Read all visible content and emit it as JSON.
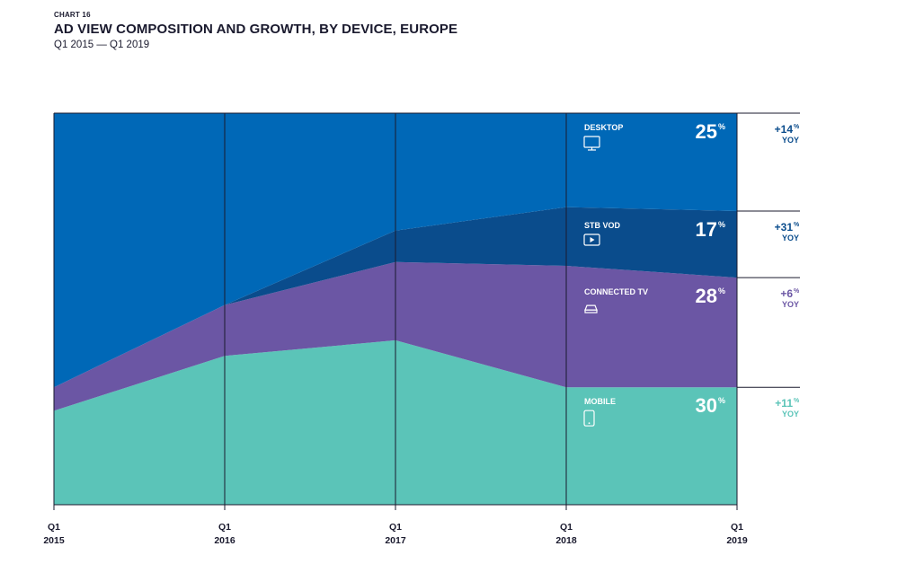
{
  "header": {
    "kicker": "CHART 16",
    "title": "AD VIEW COMPOSITION AND GROWTH, BY DEVICE, EUROPE",
    "subtitle": "Q1 2015 — Q1 2019"
  },
  "chart_data": {
    "type": "area",
    "stacked": true,
    "x": [
      "Q1 2015",
      "Q1 2016",
      "Q1 2017",
      "Q1 2018",
      "Q1 2019"
    ],
    "tick_labels": [
      {
        "quarter": "Q1",
        "year": "2015"
      },
      {
        "quarter": "Q1",
        "year": "2016"
      },
      {
        "quarter": "Q1",
        "year": "2017"
      },
      {
        "quarter": "Q1",
        "year": "2018"
      },
      {
        "quarter": "Q1",
        "year": "2019"
      }
    ],
    "ylim": [
      0,
      100
    ],
    "series": [
      {
        "name": "MOBILE",
        "values": [
          24,
          38,
          42,
          30,
          30
        ],
        "color": "#5bc4b8",
        "icon": "mobile-icon",
        "share_label": "30",
        "yoy_label": "+11",
        "yoy_color": "#5bc4b8"
      },
      {
        "name": "CONNECTED TV",
        "values": [
          6,
          13,
          20,
          31,
          28
        ],
        "color": "#6b56a4",
        "icon": "tv-box-icon",
        "share_label": "28",
        "yoy_label": "+6",
        "yoy_color": "#6b56a4"
      },
      {
        "name": "STB VOD",
        "values": [
          0,
          0,
          8,
          15,
          17
        ],
        "color": "#0a4c8c",
        "icon": "play-icon",
        "share_label": "17",
        "yoy_label": "+31",
        "yoy_color": "#0a4c8c"
      },
      {
        "name": "DESKTOP",
        "values": [
          70,
          49,
          30,
          24,
          25
        ],
        "color": "#0068b7",
        "icon": "desktop-icon",
        "share_label": "25",
        "yoy_label": "+14",
        "yoy_color": "#0a4c8c"
      }
    ],
    "percent_sign": "%",
    "yoy_text": "YOY",
    "grid": "vertical"
  }
}
